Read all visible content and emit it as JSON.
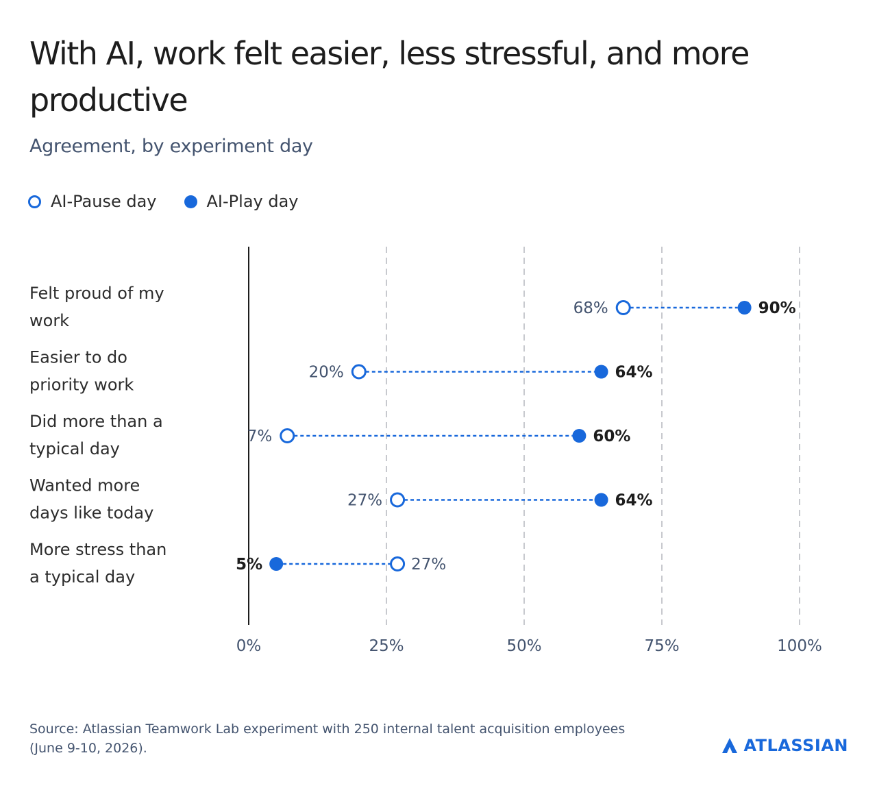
{
  "title": "With AI, work felt easier, less stressful, and more productive",
  "subtitle": "Agreement, by experiment day",
  "legend": {
    "pause_label": "AI-Pause day",
    "play_label": "AI-Play day"
  },
  "colors": {
    "accent": "#1868db",
    "text": "#1d1d1d",
    "muted": "#44546f"
  },
  "chart_data": {
    "type": "dot-plot",
    "title": "With AI, work felt easier, less stressful, and more productive",
    "subtitle": "Agreement, by experiment day",
    "categories": [
      [
        "Felt proud of my",
        "work"
      ],
      [
        "Easier to do",
        "priority work"
      ],
      [
        "Did more than a",
        "typical day"
      ],
      [
        "Wanted more",
        "days like today"
      ],
      [
        "More stress than",
        "a typical day"
      ]
    ],
    "series": [
      {
        "name": "AI-Pause day",
        "marker": "open",
        "values": [
          68,
          20,
          7,
          27,
          27
        ]
      },
      {
        "name": "AI-Play day",
        "marker": "filled",
        "values": [
          90,
          64,
          60,
          64,
          5
        ]
      }
    ],
    "xlim": [
      0,
      100
    ],
    "xticks": [
      0,
      25,
      50,
      75,
      100
    ],
    "xtick_labels": [
      "0%",
      "25%",
      "50%",
      "75%",
      "100%"
    ],
    "value_suffix": "%",
    "grid": "vertical dashed",
    "legend_position": "top-left"
  },
  "footer": {
    "source": "Source: Atlassian Teamwork Lab experiment with 250 internal talent acquisition employees (June 9-10, 2026).",
    "logo_text": "ATLASSIAN"
  }
}
